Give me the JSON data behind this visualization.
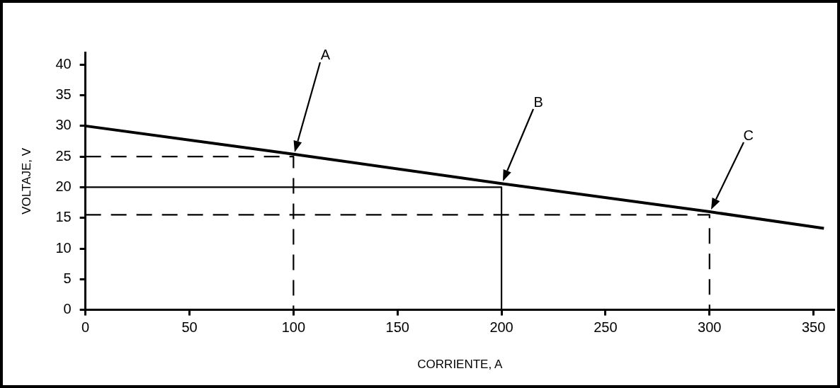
{
  "chart_data": {
    "type": "line",
    "xlabel": "CORRIENTE, A",
    "ylabel": "VOLTAJE, V",
    "xlim": [
      0,
      360
    ],
    "xticks": [
      0,
      50,
      100,
      150,
      200,
      250,
      300,
      350
    ],
    "ylim": [
      0,
      42
    ],
    "yticks": [
      0,
      5,
      10,
      15,
      20,
      25,
      30,
      35,
      40
    ],
    "grid": false,
    "legend": false,
    "marker": "none",
    "series": [
      {
        "color": "#000000",
        "x": [
          0,
          100,
          200,
          300,
          355
        ],
        "values": [
          30,
          25.4,
          20.6,
          16,
          13.3
        ],
        "line_style": "solid"
      },
      {
        "color": "#000000",
        "x": [
          0,
          100,
          100
        ],
        "values": [
          25,
          25,
          0
        ],
        "line_style": "dashed"
      },
      {
        "color": "#000000",
        "x": [
          0,
          200,
          200
        ],
        "values": [
          20,
          20,
          0
        ],
        "line_style": "solid"
      },
      {
        "color": "#000000",
        "x": [
          0,
          300,
          300
        ],
        "values": [
          15.5,
          15.5,
          0
        ],
        "line_style": "dashed"
      }
    ],
    "annotations": [
      "A",
      "B",
      "C"
    ]
  }
}
